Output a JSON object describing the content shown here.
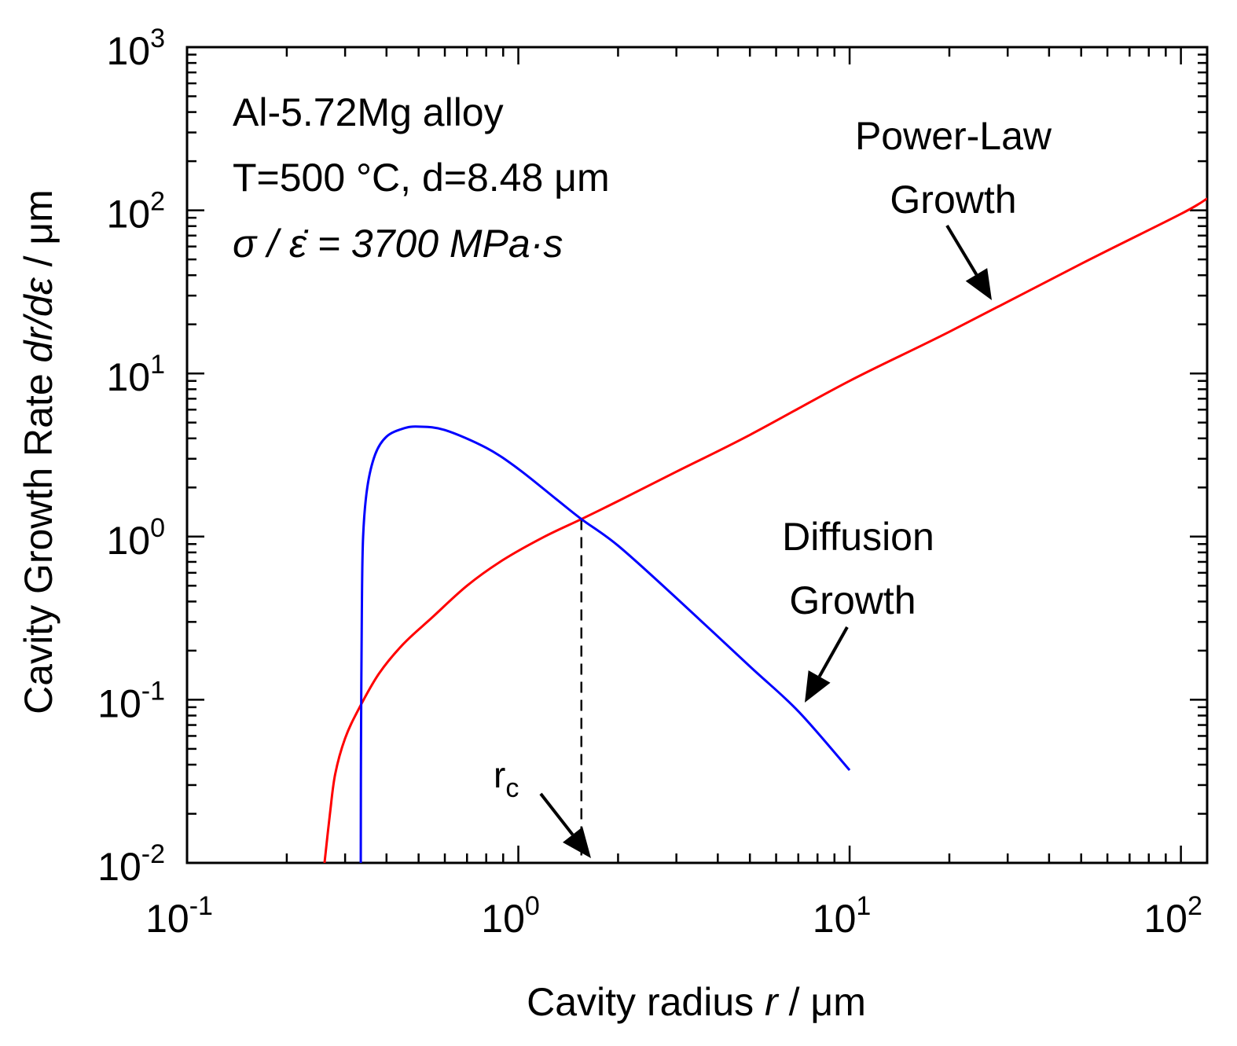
{
  "chart_data": {
    "type": "line",
    "xscale": "log",
    "yscale": "log",
    "xlim": [
      0.1,
      120
    ],
    "ylim": [
      0.01,
      1000
    ],
    "xlabel": "Cavity radius",
    "xlabel_var": "r",
    "xlabel_unit": "/ μm",
    "ylabel": "Cavity Growth Rate",
    "ylabel_var": "dr/dε",
    "ylabel_unit": "/ μm",
    "x_ticks": [
      {
        "base": "10",
        "exp": "-1",
        "value": 0.1
      },
      {
        "base": "10",
        "exp": "0",
        "value": 1
      },
      {
        "base": "10",
        "exp": "1",
        "value": 10
      },
      {
        "base": "10",
        "exp": "2",
        "value": 100
      }
    ],
    "y_ticks": [
      {
        "base": "10",
        "exp": "-2",
        "value": 0.01
      },
      {
        "base": "10",
        "exp": "-1",
        "value": 0.1
      },
      {
        "base": "10",
        "exp": "0",
        "value": 1
      },
      {
        "base": "10",
        "exp": "1",
        "value": 10
      },
      {
        "base": "10",
        "exp": "2",
        "value": 100
      },
      {
        "base": "10",
        "exp": "3",
        "value": 1000
      }
    ],
    "annotation_lines": [
      "Al-5.72Mg alloy",
      "T=500 °C, d=8.48 μm",
      "σ / ε̇ = 3700 MPa·s"
    ],
    "series": [
      {
        "name": "Power-Law Growth",
        "color": "#ff0000",
        "points": [
          [
            0.26,
            0.01
          ],
          [
            0.27,
            0.02
          ],
          [
            0.28,
            0.035
          ],
          [
            0.3,
            0.058
          ],
          [
            0.33,
            0.088
          ],
          [
            0.38,
            0.145
          ],
          [
            0.45,
            0.22
          ],
          [
            0.55,
            0.32
          ],
          [
            0.7,
            0.5
          ],
          [
            0.9,
            0.72
          ],
          [
            1.2,
            1.0
          ],
          [
            1.55,
            1.28
          ],
          [
            2.0,
            1.65
          ],
          [
            3.0,
            2.5
          ],
          [
            5.0,
            4.2
          ],
          [
            10,
            9.0
          ],
          [
            20,
            18
          ],
          [
            50,
            47
          ],
          [
            100,
            95
          ],
          [
            120,
            118
          ]
        ]
      },
      {
        "name": "Diffusion Growth",
        "color": "#0000ff",
        "points": [
          [
            0.3345,
            0.01
          ],
          [
            0.335,
            0.05
          ],
          [
            0.337,
            0.35
          ],
          [
            0.34,
            1.0
          ],
          [
            0.35,
            2.0
          ],
          [
            0.37,
            3.2
          ],
          [
            0.4,
            4.1
          ],
          [
            0.45,
            4.6
          ],
          [
            0.5,
            4.72
          ],
          [
            0.6,
            4.5
          ],
          [
            0.8,
            3.5
          ],
          [
            1.0,
            2.6
          ],
          [
            1.3,
            1.7
          ],
          [
            1.55,
            1.28
          ],
          [
            2.0,
            0.88
          ],
          [
            3.0,
            0.42
          ],
          [
            5.0,
            0.16
          ],
          [
            7.0,
            0.085
          ],
          [
            10,
            0.037
          ]
        ]
      }
    ],
    "labels": {
      "power_law": [
        "Power-Law",
        "Growth"
      ],
      "diffusion": [
        "Diffusion",
        "Growth"
      ],
      "rc": "r",
      "rc_sub": "c"
    },
    "rc_value": 1.55,
    "label_positions": {
      "power_law_arrow": [
        [
          22,
          25
        ],
        [
          27,
          25
        ]
      ],
      "diffusion_arrow": [
        [
          8.5,
          0.16
        ],
        [
          6.7,
          0.095
        ]
      ],
      "rc_arrow": [
        [
          1.05,
          0.035
        ],
        [
          1.5,
          0.0105
        ]
      ]
    }
  }
}
